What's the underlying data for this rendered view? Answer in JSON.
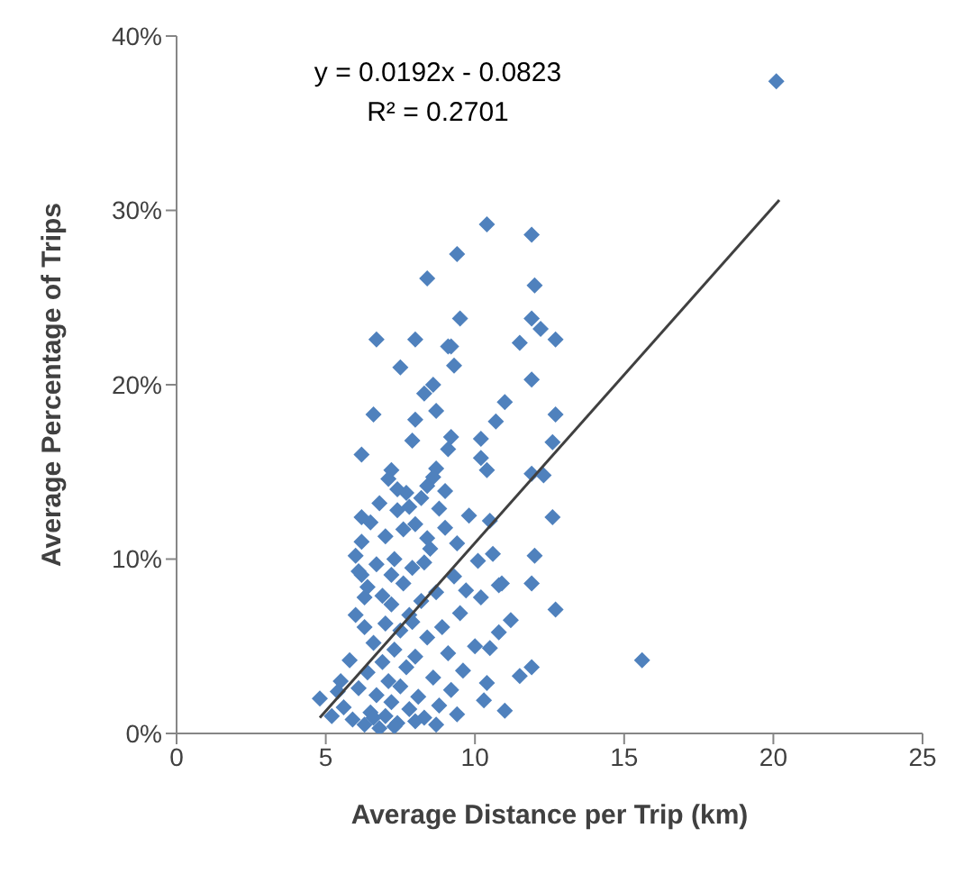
{
  "chart_data": {
    "type": "scatter",
    "xlabel": "Average Distance per Trip (km)",
    "ylabel": "Average Percentage of Trips",
    "annotations": [
      "y = 0.0192x - 0.0823",
      "R² = 0.2701"
    ],
    "xlim": [
      0,
      25
    ],
    "xticks": [
      0,
      5,
      10,
      15,
      20,
      25
    ],
    "ylim": [
      0,
      40
    ],
    "yticks": [
      {
        "value": 0,
        "label": "0%"
      },
      {
        "value": 10,
        "label": "10%"
      },
      {
        "value": 20,
        "label": "20%"
      },
      {
        "value": 30,
        "label": "30%"
      },
      {
        "value": 40,
        "label": "40%"
      }
    ],
    "grid": false,
    "legend": false,
    "marker": "diamond",
    "series": [
      {
        "color": "#4f81bd",
        "x": [
          20.1,
          15.6,
          10.4,
          9.4,
          8.4,
          11.9,
          12.0,
          11.9,
          12.2,
          12.7,
          11.5,
          11.9,
          12.7,
          12.6,
          11.9,
          12.3,
          12.6,
          12.0,
          11.9,
          12.7,
          11.9,
          9.5,
          9.2,
          11.0,
          10.7,
          10.2,
          10.2,
          10.4,
          10.9,
          10.5,
          6.7,
          8.0,
          9.1,
          7.5,
          9.3,
          8.6,
          8.3,
          6.6,
          8.0,
          8.7,
          7.9,
          9.2,
          6.2,
          9.1,
          7.2,
          8.7,
          7.4,
          8.4,
          6.2,
          7.8,
          6.0,
          6.2,
          6.3,
          10.8,
          4.8,
          5.4,
          5.6,
          5.9,
          6.1,
          6.3,
          6.4,
          6.5,
          6.6,
          6.7,
          6.8,
          6.9,
          7.0,
          7.0,
          7.1,
          7.2,
          7.2,
          7.3,
          7.4,
          7.5,
          7.5,
          7.6,
          7.7,
          7.8,
          7.8,
          7.9,
          8.0,
          8.1,
          8.2,
          8.3,
          8.4,
          8.5,
          8.6,
          8.7,
          8.8,
          8.9,
          9.0,
          9.1,
          9.2,
          9.3,
          9.5,
          9.6,
          9.8,
          10.0,
          10.2,
          10.4,
          10.6,
          10.8,
          11.2,
          11.5,
          6.0,
          6.2,
          6.4,
          6.5,
          6.7,
          6.8,
          7.0,
          7.1,
          7.3,
          7.4,
          7.6,
          7.7,
          8.0,
          8.2,
          8.4,
          8.6,
          8.8,
          9.0,
          9.4,
          7.2,
          6.9,
          6.3,
          5.8,
          5.5,
          6.1,
          7.9,
          8.3,
          9.7,
          10.1,
          10.5,
          6.6,
          7.3,
          8.0,
          8.7,
          9.4,
          10.3,
          11.0,
          5.2
        ],
        "values": [
          37.4,
          4.2,
          29.2,
          27.5,
          26.1,
          28.6,
          25.7,
          23.8,
          23.2,
          22.6,
          22.4,
          20.3,
          18.3,
          16.7,
          14.9,
          14.8,
          12.4,
          10.2,
          8.6,
          7.1,
          3.8,
          23.8,
          22.2,
          19.0,
          17.9,
          16.9,
          15.8,
          15.1,
          8.6,
          4.9,
          22.6,
          22.6,
          22.2,
          21.0,
          21.1,
          20.0,
          19.5,
          18.3,
          18.0,
          18.5,
          16.8,
          17.0,
          16.0,
          16.3,
          15.1,
          15.2,
          14.0,
          14.2,
          12.4,
          13.0,
          10.2,
          9.1,
          7.8,
          8.5,
          2.0,
          2.4,
          1.5,
          0.8,
          2.6,
          0.5,
          3.5,
          1.2,
          5.2,
          2.2,
          0.3,
          4.1,
          1.0,
          6.3,
          3.0,
          7.4,
          1.8,
          4.8,
          0.6,
          5.9,
          2.7,
          8.6,
          3.8,
          1.4,
          6.8,
          9.5,
          4.4,
          2.1,
          7.6,
          0.9,
          5.5,
          10.6,
          3.2,
          8.1,
          1.6,
          6.1,
          11.8,
          4.6,
          2.5,
          9.0,
          6.9,
          3.6,
          12.5,
          5.0,
          7.8,
          2.9,
          10.3,
          5.8,
          6.5,
          3.3,
          6.8,
          11.0,
          8.4,
          12.1,
          9.7,
          13.2,
          11.3,
          14.6,
          10.0,
          12.8,
          11.7,
          13.8,
          12.0,
          13.5,
          11.2,
          14.7,
          12.9,
          13.9,
          10.9,
          9.1,
          7.9,
          6.1,
          4.2,
          3.0,
          9.3,
          6.4,
          9.8,
          8.2,
          9.9,
          12.2,
          0.9,
          0.4,
          0.7,
          0.5,
          1.1,
          1.9,
          1.3,
          1.0
        ]
      },
      {
        "type": "line",
        "color": "#404040",
        "marker": "none",
        "x": [
          4.8,
          20.2
        ],
        "values": [
          0.9,
          30.6
        ]
      }
    ]
  }
}
